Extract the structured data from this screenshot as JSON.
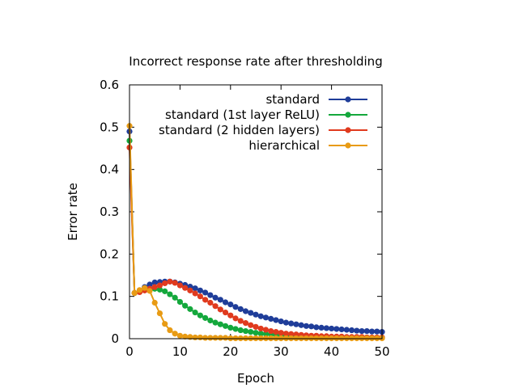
{
  "chart_data": {
    "type": "line",
    "title": "Incorrect response rate after thresholding",
    "xlabel": "Epoch",
    "ylabel": "Error rate",
    "xlim": [
      0,
      50
    ],
    "ylim": [
      0,
      0.6
    ],
    "xticks": [
      "0",
      "10",
      "20",
      "30",
      "40",
      "50"
    ],
    "yticks": [
      "0",
      "0.1",
      "0.2",
      "0.3",
      "0.4",
      "0.5",
      "0.6"
    ],
    "legend_position": "top-right",
    "grid": false,
    "series": [
      {
        "name": "standard",
        "color": "#1f3d99",
        "x": [
          0,
          1,
          2,
          3,
          4,
          5,
          6,
          7,
          8,
          9,
          10,
          11,
          12,
          13,
          14,
          15,
          16,
          17,
          18,
          19,
          20,
          21,
          22,
          23,
          24,
          25,
          26,
          27,
          28,
          29,
          30,
          31,
          32,
          33,
          34,
          35,
          36,
          37,
          38,
          39,
          40,
          41,
          42,
          43,
          44,
          45,
          46,
          47,
          48,
          49,
          50
        ],
        "y": [
          0.49,
          0.108,
          0.112,
          0.122,
          0.128,
          0.133,
          0.134,
          0.135,
          0.135,
          0.133,
          0.13,
          0.127,
          0.123,
          0.119,
          0.114,
          0.109,
          0.103,
          0.097,
          0.092,
          0.086,
          0.081,
          0.075,
          0.07,
          0.065,
          0.061,
          0.057,
          0.053,
          0.05,
          0.047,
          0.044,
          0.041,
          0.038,
          0.036,
          0.034,
          0.032,
          0.03,
          0.029,
          0.027,
          0.026,
          0.025,
          0.024,
          0.023,
          0.022,
          0.021,
          0.02,
          0.019,
          0.018,
          0.018,
          0.017,
          0.017,
          0.016
        ]
      },
      {
        "name": "standard (1st layer ReLU)",
        "color": "#14a83c",
        "x": [
          0,
          1,
          2,
          3,
          4,
          5,
          6,
          7,
          8,
          9,
          10,
          11,
          12,
          13,
          14,
          15,
          16,
          17,
          18,
          19,
          20,
          21,
          22,
          23,
          24,
          25,
          26,
          27,
          28,
          29,
          30,
          31,
          32,
          33,
          34,
          35,
          36,
          37,
          38,
          39,
          40,
          41,
          42,
          43,
          44,
          45,
          46,
          47,
          48,
          49,
          50
        ],
        "y": [
          0.468,
          0.108,
          0.112,
          0.115,
          0.117,
          0.118,
          0.116,
          0.112,
          0.105,
          0.097,
          0.087,
          0.078,
          0.07,
          0.062,
          0.055,
          0.049,
          0.043,
          0.038,
          0.034,
          0.03,
          0.026,
          0.023,
          0.02,
          0.018,
          0.016,
          0.014,
          0.012,
          0.011,
          0.01,
          0.009,
          0.008,
          0.007,
          0.007,
          0.006,
          0.006,
          0.005,
          0.005,
          0.005,
          0.004,
          0.004,
          0.004,
          0.004,
          0.003,
          0.003,
          0.003,
          0.003,
          0.003,
          0.003,
          0.002,
          0.002,
          0.002
        ]
      },
      {
        "name": "standard (2 hidden layers)",
        "color": "#e03a1e",
        "x": [
          0,
          1,
          2,
          3,
          4,
          5,
          6,
          7,
          8,
          9,
          10,
          11,
          12,
          13,
          14,
          15,
          16,
          17,
          18,
          19,
          20,
          21,
          22,
          23,
          24,
          25,
          26,
          27,
          28,
          29,
          30,
          31,
          32,
          33,
          34,
          35,
          36,
          37,
          38,
          39,
          40,
          41,
          42,
          43,
          44,
          45,
          46,
          47,
          48,
          49,
          50
        ],
        "y": [
          0.452,
          0.108,
          0.11,
          0.114,
          0.118,
          0.122,
          0.126,
          0.131,
          0.135,
          0.132,
          0.126,
          0.12,
          0.114,
          0.107,
          0.1,
          0.092,
          0.085,
          0.077,
          0.069,
          0.062,
          0.055,
          0.048,
          0.042,
          0.037,
          0.032,
          0.028,
          0.024,
          0.021,
          0.018,
          0.016,
          0.014,
          0.012,
          0.011,
          0.01,
          0.009,
          0.008,
          0.007,
          0.007,
          0.006,
          0.006,
          0.005,
          0.005,
          0.005,
          0.004,
          0.004,
          0.004,
          0.004,
          0.003,
          0.003,
          0.003,
          0.003
        ]
      },
      {
        "name": "hierarchical",
        "color": "#e89b14",
        "x": [
          0,
          1,
          2,
          3,
          4,
          5,
          6,
          7,
          8,
          9,
          10,
          11,
          12,
          13,
          14,
          15,
          16,
          17,
          18,
          19,
          20,
          21,
          22,
          23,
          24,
          25,
          26,
          27,
          28,
          29,
          30,
          31,
          32,
          33,
          34,
          35,
          36,
          37,
          38,
          39,
          40,
          41,
          42,
          43,
          44,
          45,
          46,
          47,
          48,
          49,
          50
        ],
        "y": [
          0.503,
          0.108,
          0.115,
          0.12,
          0.113,
          0.085,
          0.06,
          0.035,
          0.02,
          0.012,
          0.007,
          0.005,
          0.004,
          0.003,
          0.003,
          0.002,
          0.002,
          0.002,
          0.002,
          0.002,
          0.001,
          0.001,
          0.001,
          0.001,
          0.001,
          0.001,
          0.001,
          0.001,
          0.001,
          0.001,
          0.001,
          0.001,
          0.001,
          0.001,
          0.001,
          0.001,
          0.001,
          0.001,
          0.001,
          0.001,
          0.001,
          0.001,
          0.001,
          0.001,
          0.001,
          0.001,
          0.001,
          0.001,
          0.001,
          0.001,
          0.001
        ]
      }
    ]
  }
}
